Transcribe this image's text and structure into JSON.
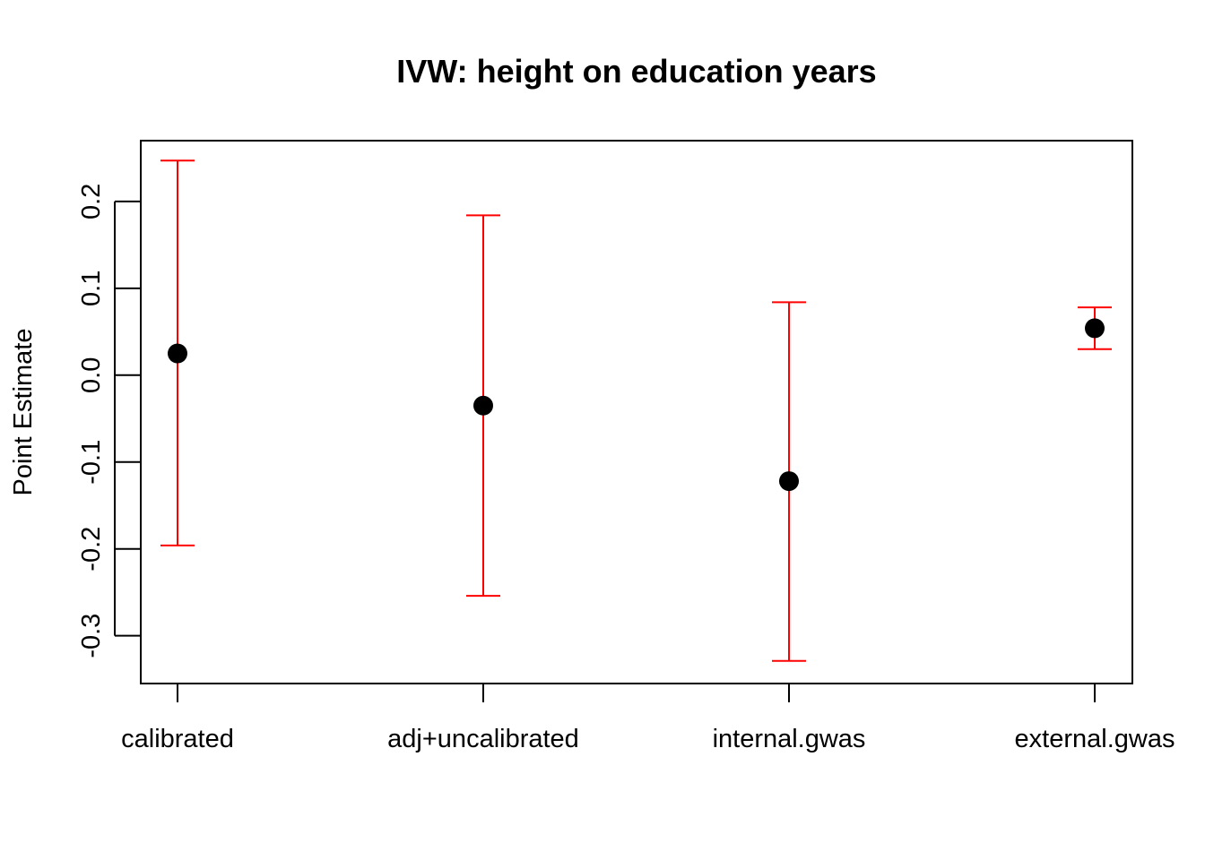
{
  "chart_data": {
    "type": "scatter",
    "subtype": "point-estimate-with-error-bars",
    "title": "IVW: height on education years",
    "xlabel": "",
    "ylabel": "Point Estimate",
    "categories": [
      "calibrated",
      "adj+uncalibrated",
      "internal.gwas",
      "external.gwas"
    ],
    "series": [
      {
        "name": "Point Estimate",
        "values": [
          0.025,
          -0.035,
          -0.122,
          0.054
        ],
        "lower": [
          -0.196,
          -0.254,
          -0.329,
          0.03
        ],
        "upper": [
          0.247,
          0.184,
          0.084,
          0.078
        ]
      }
    ],
    "yticks": [
      -0.3,
      -0.2,
      -0.1,
      0.0,
      0.1,
      0.2
    ],
    "ytick_labels": [
      "-0.3",
      "-0.2",
      "-0.1",
      "0.0",
      "0.1",
      "0.2"
    ],
    "ylim": [
      -0.355,
      0.27
    ],
    "grid": false,
    "point_color": "#000000",
    "errorbar_color": "#ff0000"
  }
}
